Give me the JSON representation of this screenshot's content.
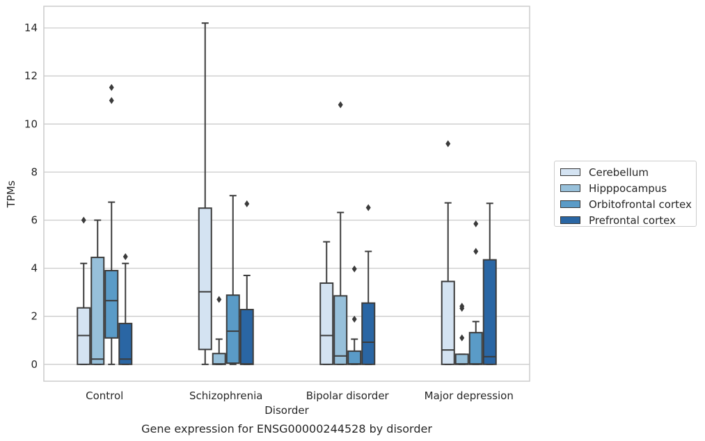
{
  "chart_data": {
    "type": "box",
    "title": "Gene expression for ENSG00000244528 by disorder",
    "xlabel": "Disorder",
    "ylabel": "TPMs",
    "ylim": [
      -0.7,
      14.9
    ],
    "yticks": [
      0,
      2,
      4,
      6,
      8,
      10,
      12,
      14
    ],
    "grid": true,
    "legend_position": "right",
    "categories": [
      "Control",
      "Schizophrenia",
      "Bipolar disorder",
      "Major depression"
    ],
    "series": [
      {
        "name": "Cerebellum",
        "color": "#d4e3f2",
        "boxes": [
          {
            "whisker_low": 0,
            "q1": 0,
            "median": 1.2,
            "q3": 2.35,
            "whisker_high": 4.2,
            "outliers": [
              6.0
            ]
          },
          {
            "whisker_low": 0,
            "q1": 0.62,
            "median": 3.02,
            "q3": 6.5,
            "whisker_high": 14.2,
            "outliers": []
          },
          {
            "whisker_low": 0,
            "q1": 0,
            "median": 1.2,
            "q3": 3.38,
            "whisker_high": 5.1,
            "outliers": []
          },
          {
            "whisker_low": 0,
            "q1": 0,
            "median": 0.6,
            "q3": 3.45,
            "whisker_high": 6.72,
            "outliers": [
              9.18
            ]
          }
        ]
      },
      {
        "name": "Hipppocampus",
        "color": "#97c0da",
        "boxes": [
          {
            "whisker_low": 0,
            "q1": 0,
            "median": 0.22,
            "q3": 4.45,
            "whisker_high": 6.0,
            "outliers": []
          },
          {
            "whisker_low": 0,
            "q1": 0,
            "median": 0.02,
            "q3": 0.45,
            "whisker_high": 1.05,
            "outliers": [
              2.7
            ]
          },
          {
            "whisker_low": 0,
            "q1": 0,
            "median": 0.35,
            "q3": 2.85,
            "whisker_high": 6.32,
            "outliers": [
              10.8
            ]
          },
          {
            "whisker_low": 0,
            "q1": 0,
            "median": 0.02,
            "q3": 0.42,
            "whisker_high": 0.42,
            "outliers": [
              1.1,
              2.33,
              2.42
            ]
          }
        ]
      },
      {
        "name": "Orbitofrontal cortex",
        "color": "#5a9bc7",
        "boxes": [
          {
            "whisker_low": 0,
            "q1": 1.1,
            "median": 2.65,
            "q3": 3.9,
            "whisker_high": 6.75,
            "outliers": [
              10.98,
              11.52
            ]
          },
          {
            "whisker_low": 0,
            "q1": 0.05,
            "median": 1.38,
            "q3": 2.88,
            "whisker_high": 7.02,
            "outliers": []
          },
          {
            "whisker_low": 0,
            "q1": 0,
            "median": 0.02,
            "q3": 0.55,
            "whisker_high": 1.05,
            "outliers": [
              1.88,
              3.97
            ]
          },
          {
            "whisker_low": 0,
            "q1": 0,
            "median": 0.02,
            "q3": 1.32,
            "whisker_high": 1.78,
            "outliers": [
              4.7,
              5.85
            ]
          }
        ]
      },
      {
        "name": "Prefrontal cortex",
        "color": "#2a66a4",
        "boxes": [
          {
            "whisker_low": 0,
            "q1": 0,
            "median": 0.22,
            "q3": 1.7,
            "whisker_high": 4.2,
            "outliers": [
              4.48
            ]
          },
          {
            "whisker_low": 0,
            "q1": 0,
            "median": 0.02,
            "q3": 2.28,
            "whisker_high": 3.7,
            "outliers": [
              6.68
            ]
          },
          {
            "whisker_low": 0,
            "q1": 0,
            "median": 0.92,
            "q3": 2.55,
            "whisker_high": 4.7,
            "outliers": [
              6.52
            ]
          },
          {
            "whisker_low": 0,
            "q1": 0,
            "median": 0.32,
            "q3": 4.35,
            "whisker_high": 6.7,
            "outliers": []
          }
        ]
      }
    ]
  }
}
